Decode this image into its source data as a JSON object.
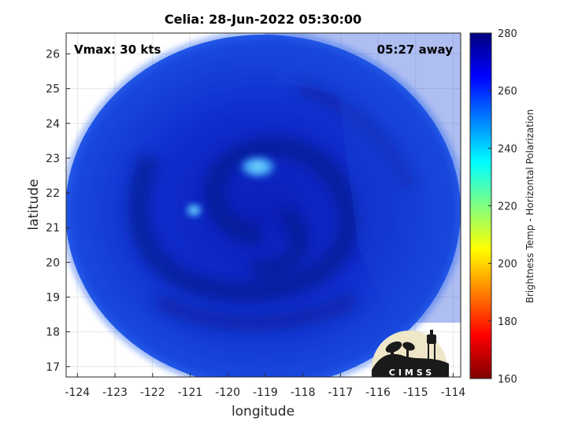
{
  "chart_data": {
    "type": "heatmap",
    "title": "Celia: 28-Jun-2022 05:30:00",
    "xlabel": "longitude",
    "ylabel": "latitude",
    "xlim": [
      -124.3,
      -113.8
    ],
    "ylim": [
      16.7,
      26.6
    ],
    "x_ticks": [
      -124,
      -123,
      -122,
      -121,
      -120,
      -119,
      -118,
      -117,
      -116,
      -115,
      -114
    ],
    "y_ticks": [
      17,
      18,
      19,
      20,
      21,
      22,
      23,
      24,
      25,
      26
    ],
    "grid": true,
    "annotations": {
      "left": "Vmax: 30 kts",
      "right": "05:27 away"
    },
    "colorbar": {
      "label": "Brightness Temp - Horizontal Polarization",
      "range": [
        160,
        280
      ],
      "ticks": [
        160,
        180,
        200,
        220,
        240,
        260,
        280
      ],
      "colors": [
        "#7f0000",
        "#ff0000",
        "#ff8000",
        "#ffff00",
        "#80ff80",
        "#00ffff",
        "#0080ff",
        "#0000ff",
        "#00007f"
      ]
    },
    "swath": {
      "center_lon": -119.1,
      "center_lat": 21.5,
      "typical_value": 265,
      "min_value": 240,
      "warm_spots": [
        {
          "lon": -119.2,
          "lat": 22.75,
          "value": 243
        },
        {
          "lon": -120.9,
          "lat": 21.5,
          "value": 249
        }
      ]
    },
    "logo_text": "CIMSS"
  }
}
